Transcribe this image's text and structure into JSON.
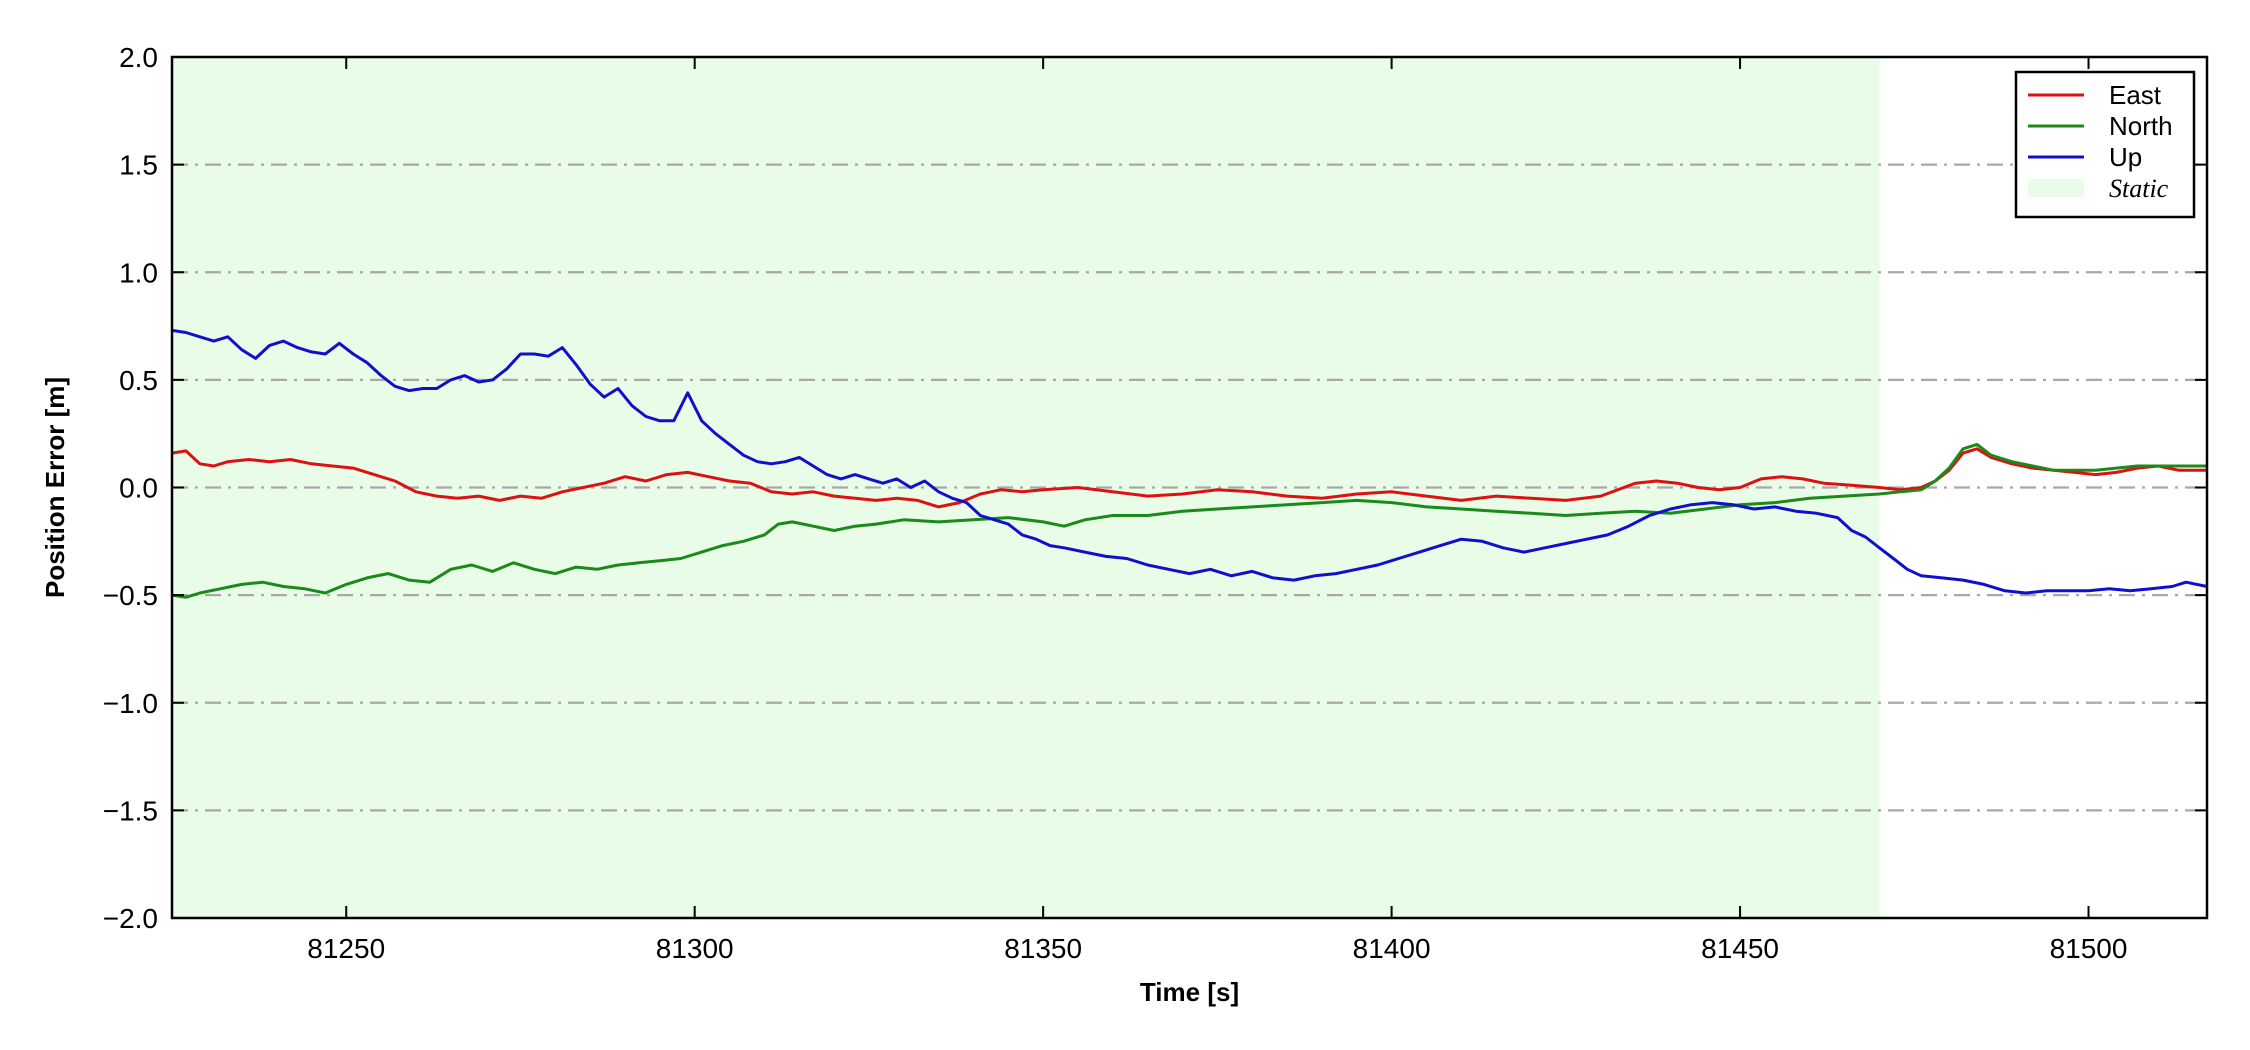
{
  "chart_data": {
    "type": "line",
    "xlabel": "Time [s]",
    "ylabel": "Position Error [m]",
    "xlim": [
      81225,
      81517
    ],
    "ylim": [
      -2.0,
      2.0
    ],
    "x_ticks": [
      81250,
      81300,
      81350,
      81400,
      81450,
      81500
    ],
    "x_tick_labels": [
      "81250",
      "81300",
      "81350",
      "81400",
      "81450",
      "81500"
    ],
    "y_ticks": [
      -2.0,
      -1.5,
      -1.0,
      -0.5,
      0.0,
      0.5,
      1.0,
      1.5,
      2.0
    ],
    "y_tick_labels": [
      "−2.0",
      "−1.5",
      "−1.0",
      "−0.5",
      "0.0",
      "0.5",
      "1.0",
      "1.5",
      "2.0"
    ],
    "grid": "horizontal dash-dot",
    "legend_position": "top-right",
    "shaded_region": {
      "name": "Static",
      "x_start": 81225,
      "x_end": 81470,
      "color": "#e8fce8"
    },
    "series": [
      {
        "name": "East",
        "color": "#dd1111",
        "points": [
          [
            81225,
            0.16
          ],
          [
            81227,
            0.17
          ],
          [
            81229,
            0.11
          ],
          [
            81231,
            0.1
          ],
          [
            81233,
            0.12
          ],
          [
            81236,
            0.13
          ],
          [
            81239,
            0.12
          ],
          [
            81242,
            0.13
          ],
          [
            81245,
            0.11
          ],
          [
            81248,
            0.1
          ],
          [
            81251,
            0.09
          ],
          [
            81254,
            0.06
          ],
          [
            81257,
            0.03
          ],
          [
            81260,
            -0.02
          ],
          [
            81263,
            -0.04
          ],
          [
            81266,
            -0.05
          ],
          [
            81269,
            -0.04
          ],
          [
            81272,
            -0.06
          ],
          [
            81275,
            -0.04
          ],
          [
            81278,
            -0.05
          ],
          [
            81281,
            -0.02
          ],
          [
            81284,
            0.0
          ],
          [
            81287,
            0.02
          ],
          [
            81290,
            0.05
          ],
          [
            81293,
            0.03
          ],
          [
            81296,
            0.06
          ],
          [
            81299,
            0.07
          ],
          [
            81302,
            0.05
          ],
          [
            81305,
            0.03
          ],
          [
            81308,
            0.02
          ],
          [
            81311,
            -0.02
          ],
          [
            81314,
            -0.03
          ],
          [
            81317,
            -0.02
          ],
          [
            81320,
            -0.04
          ],
          [
            81323,
            -0.05
          ],
          [
            81326,
            -0.06
          ],
          [
            81329,
            -0.05
          ],
          [
            81332,
            -0.06
          ],
          [
            81335,
            -0.09
          ],
          [
            81338,
            -0.07
          ],
          [
            81341,
            -0.03
          ],
          [
            81344,
            -0.01
          ],
          [
            81347,
            -0.02
          ],
          [
            81350,
            -0.01
          ],
          [
            81355,
            0.0
          ],
          [
            81360,
            -0.02
          ],
          [
            81365,
            -0.04
          ],
          [
            81370,
            -0.03
          ],
          [
            81375,
            -0.01
          ],
          [
            81380,
            -0.02
          ],
          [
            81385,
            -0.04
          ],
          [
            81390,
            -0.05
          ],
          [
            81395,
            -0.03
          ],
          [
            81400,
            -0.02
          ],
          [
            81405,
            -0.04
          ],
          [
            81410,
            -0.06
          ],
          [
            81415,
            -0.04
          ],
          [
            81420,
            -0.05
          ],
          [
            81425,
            -0.06
          ],
          [
            81430,
            -0.04
          ],
          [
            81435,
            0.02
          ],
          [
            81438,
            0.03
          ],
          [
            81441,
            0.02
          ],
          [
            81444,
            0.0
          ],
          [
            81447,
            -0.01
          ],
          [
            81450,
            0.0
          ],
          [
            81453,
            0.04
          ],
          [
            81456,
            0.05
          ],
          [
            81459,
            0.04
          ],
          [
            81462,
            0.02
          ],
          [
            81466,
            0.01
          ],
          [
            81470,
            0.0
          ],
          [
            81473,
            -0.01
          ],
          [
            81476,
            0.0
          ],
          [
            81478,
            0.03
          ],
          [
            81480,
            0.08
          ],
          [
            81482,
            0.16
          ],
          [
            81484,
            0.18
          ],
          [
            81486,
            0.14
          ],
          [
            81489,
            0.11
          ],
          [
            81492,
            0.09
          ],
          [
            81495,
            0.08
          ],
          [
            81498,
            0.07
          ],
          [
            81501,
            0.06
          ],
          [
            81504,
            0.07
          ],
          [
            81507,
            0.09
          ],
          [
            81510,
            0.1
          ],
          [
            81513,
            0.08
          ],
          [
            81517,
            0.08
          ]
        ]
      },
      {
        "name": "North",
        "color": "#1a8a1a",
        "points": [
          [
            81225,
            -0.5
          ],
          [
            81227,
            -0.51
          ],
          [
            81229,
            -0.49
          ],
          [
            81232,
            -0.47
          ],
          [
            81235,
            -0.45
          ],
          [
            81238,
            -0.44
          ],
          [
            81241,
            -0.46
          ],
          [
            81244,
            -0.47
          ],
          [
            81247,
            -0.49
          ],
          [
            81250,
            -0.45
          ],
          [
            81253,
            -0.42
          ],
          [
            81256,
            -0.4
          ],
          [
            81259,
            -0.43
          ],
          [
            81262,
            -0.44
          ],
          [
            81265,
            -0.38
          ],
          [
            81268,
            -0.36
          ],
          [
            81271,
            -0.39
          ],
          [
            81274,
            -0.35
          ],
          [
            81277,
            -0.38
          ],
          [
            81280,
            -0.4
          ],
          [
            81283,
            -0.37
          ],
          [
            81286,
            -0.38
          ],
          [
            81289,
            -0.36
          ],
          [
            81292,
            -0.35
          ],
          [
            81295,
            -0.34
          ],
          [
            81298,
            -0.33
          ],
          [
            81301,
            -0.3
          ],
          [
            81304,
            -0.27
          ],
          [
            81307,
            -0.25
          ],
          [
            81310,
            -0.22
          ],
          [
            81312,
            -0.17
          ],
          [
            81314,
            -0.16
          ],
          [
            81317,
            -0.18
          ],
          [
            81320,
            -0.2
          ],
          [
            81323,
            -0.18
          ],
          [
            81326,
            -0.17
          ],
          [
            81330,
            -0.15
          ],
          [
            81335,
            -0.16
          ],
          [
            81340,
            -0.15
          ],
          [
            81345,
            -0.14
          ],
          [
            81350,
            -0.16
          ],
          [
            81353,
            -0.18
          ],
          [
            81356,
            -0.15
          ],
          [
            81360,
            -0.13
          ],
          [
            81365,
            -0.13
          ],
          [
            81370,
            -0.11
          ],
          [
            81375,
            -0.1
          ],
          [
            81380,
            -0.09
          ],
          [
            81385,
            -0.08
          ],
          [
            81390,
            -0.07
          ],
          [
            81395,
            -0.06
          ],
          [
            81400,
            -0.07
          ],
          [
            81405,
            -0.09
          ],
          [
            81410,
            -0.1
          ],
          [
            81415,
            -0.11
          ],
          [
            81420,
            -0.12
          ],
          [
            81425,
            -0.13
          ],
          [
            81430,
            -0.12
          ],
          [
            81435,
            -0.11
          ],
          [
            81440,
            -0.12
          ],
          [
            81445,
            -0.1
          ],
          [
            81450,
            -0.08
          ],
          [
            81455,
            -0.07
          ],
          [
            81460,
            -0.05
          ],
          [
            81465,
            -0.04
          ],
          [
            81470,
            -0.03
          ],
          [
            81473,
            -0.02
          ],
          [
            81476,
            -0.01
          ],
          [
            81478,
            0.03
          ],
          [
            81480,
            0.09
          ],
          [
            81482,
            0.18
          ],
          [
            81484,
            0.2
          ],
          [
            81486,
            0.15
          ],
          [
            81489,
            0.12
          ],
          [
            81492,
            0.1
          ],
          [
            81495,
            0.08
          ],
          [
            81498,
            0.08
          ],
          [
            81501,
            0.08
          ],
          [
            81504,
            0.09
          ],
          [
            81507,
            0.1
          ],
          [
            81510,
            0.1
          ],
          [
            81513,
            0.1
          ],
          [
            81517,
            0.1
          ]
        ]
      },
      {
        "name": "Up",
        "color": "#1010cc",
        "points": [
          [
            81225,
            0.73
          ],
          [
            81227,
            0.72
          ],
          [
            81229,
            0.7
          ],
          [
            81231,
            0.68
          ],
          [
            81233,
            0.7
          ],
          [
            81235,
            0.64
          ],
          [
            81237,
            0.6
          ],
          [
            81239,
            0.66
          ],
          [
            81241,
            0.68
          ],
          [
            81243,
            0.65
          ],
          [
            81245,
            0.63
          ],
          [
            81247,
            0.62
          ],
          [
            81249,
            0.67
          ],
          [
            81251,
            0.62
          ],
          [
            81253,
            0.58
          ],
          [
            81255,
            0.52
          ],
          [
            81257,
            0.47
          ],
          [
            81259,
            0.45
          ],
          [
            81261,
            0.46
          ],
          [
            81263,
            0.46
          ],
          [
            81265,
            0.5
          ],
          [
            81267,
            0.52
          ],
          [
            81269,
            0.49
          ],
          [
            81271,
            0.5
          ],
          [
            81273,
            0.55
          ],
          [
            81275,
            0.62
          ],
          [
            81277,
            0.62
          ],
          [
            81279,
            0.61
          ],
          [
            81281,
            0.65
          ],
          [
            81283,
            0.57
          ],
          [
            81285,
            0.48
          ],
          [
            81287,
            0.42
          ],
          [
            81289,
            0.46
          ],
          [
            81291,
            0.38
          ],
          [
            81293,
            0.33
          ],
          [
            81295,
            0.31
          ],
          [
            81297,
            0.31
          ],
          [
            81299,
            0.44
          ],
          [
            81301,
            0.31
          ],
          [
            81303,
            0.25
          ],
          [
            81305,
            0.2
          ],
          [
            81307,
            0.15
          ],
          [
            81309,
            0.12
          ],
          [
            81311,
            0.11
          ],
          [
            81313,
            0.12
          ],
          [
            81315,
            0.14
          ],
          [
            81317,
            0.1
          ],
          [
            81319,
            0.06
          ],
          [
            81321,
            0.04
          ],
          [
            81323,
            0.06
          ],
          [
            81325,
            0.04
          ],
          [
            81327,
            0.02
          ],
          [
            81329,
            0.04
          ],
          [
            81331,
            0.0
          ],
          [
            81333,
            0.03
          ],
          [
            81335,
            -0.02
          ],
          [
            81337,
            -0.05
          ],
          [
            81339,
            -0.07
          ],
          [
            81341,
            -0.13
          ],
          [
            81343,
            -0.15
          ],
          [
            81345,
            -0.17
          ],
          [
            81347,
            -0.22
          ],
          [
            81349,
            -0.24
          ],
          [
            81351,
            -0.27
          ],
          [
            81353,
            -0.28
          ],
          [
            81356,
            -0.3
          ],
          [
            81359,
            -0.32
          ],
          [
            81362,
            -0.33
          ],
          [
            81365,
            -0.36
          ],
          [
            81368,
            -0.38
          ],
          [
            81371,
            -0.4
          ],
          [
            81374,
            -0.38
          ],
          [
            81377,
            -0.41
          ],
          [
            81380,
            -0.39
          ],
          [
            81383,
            -0.42
          ],
          [
            81386,
            -0.43
          ],
          [
            81389,
            -0.41
          ],
          [
            81392,
            -0.4
          ],
          [
            81395,
            -0.38
          ],
          [
            81398,
            -0.36
          ],
          [
            81401,
            -0.33
          ],
          [
            81404,
            -0.3
          ],
          [
            81407,
            -0.27
          ],
          [
            81410,
            -0.24
          ],
          [
            81413,
            -0.25
          ],
          [
            81416,
            -0.28
          ],
          [
            81419,
            -0.3
          ],
          [
            81422,
            -0.28
          ],
          [
            81425,
            -0.26
          ],
          [
            81428,
            -0.24
          ],
          [
            81431,
            -0.22
          ],
          [
            81434,
            -0.18
          ],
          [
            81437,
            -0.13
          ],
          [
            81440,
            -0.1
          ],
          [
            81443,
            -0.08
          ],
          [
            81446,
            -0.07
          ],
          [
            81449,
            -0.08
          ],
          [
            81452,
            -0.1
          ],
          [
            81455,
            -0.09
          ],
          [
            81458,
            -0.11
          ],
          [
            81461,
            -0.12
          ],
          [
            81464,
            -0.14
          ],
          [
            81466,
            -0.2
          ],
          [
            81468,
            -0.23
          ],
          [
            81470,
            -0.28
          ],
          [
            81472,
            -0.33
          ],
          [
            81474,
            -0.38
          ],
          [
            81476,
            -0.41
          ],
          [
            81479,
            -0.42
          ],
          [
            81482,
            -0.43
          ],
          [
            81485,
            -0.45
          ],
          [
            81488,
            -0.48
          ],
          [
            81491,
            -0.49
          ],
          [
            81494,
            -0.48
          ],
          [
            81497,
            -0.48
          ],
          [
            81500,
            -0.48
          ],
          [
            81503,
            -0.47
          ],
          [
            81506,
            -0.48
          ],
          [
            81509,
            -0.47
          ],
          [
            81512,
            -0.46
          ],
          [
            81514,
            -0.44
          ],
          [
            81517,
            -0.46
          ]
        ]
      }
    ]
  }
}
